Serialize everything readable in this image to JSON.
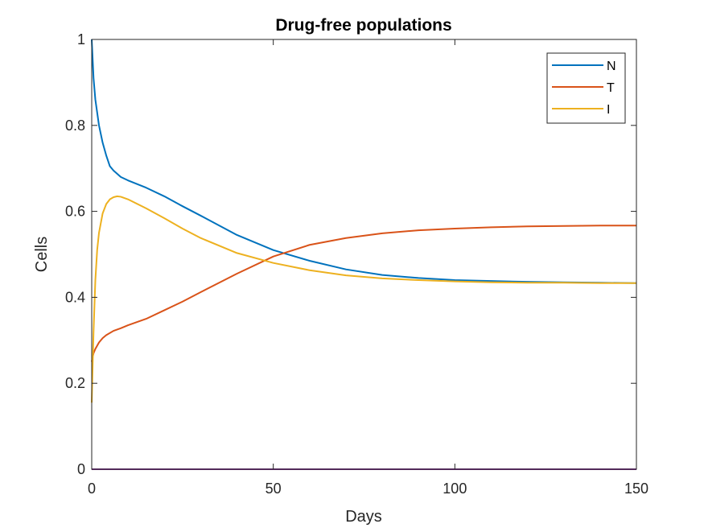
{
  "chart_data": {
    "type": "line",
    "title": "Drug-free populations",
    "xlabel": "Days",
    "ylabel": "Cells",
    "xlim": [
      0,
      150
    ],
    "ylim": [
      0,
      1
    ],
    "x_ticks": [
      0,
      50,
      100,
      150
    ],
    "y_ticks": [
      0,
      0.2,
      0.4,
      0.6,
      0.8,
      1
    ],
    "x_tick_labels": [
      "0",
      "50",
      "100",
      "150"
    ],
    "y_tick_labels": [
      "0",
      "0.2",
      "0.4",
      "0.6",
      "0.8",
      "1"
    ],
    "grid": false,
    "legend_position": "top-right",
    "series": [
      {
        "name": "N",
        "color": "#0072BD",
        "x": [
          0,
          0.5,
          1,
          2,
          3,
          4,
          5,
          6,
          8,
          10,
          15,
          20,
          25,
          30,
          40,
          50,
          60,
          70,
          80,
          90,
          100,
          110,
          120,
          130,
          140,
          150
        ],
        "y": [
          1.0,
          0.91,
          0.86,
          0.8,
          0.76,
          0.73,
          0.705,
          0.695,
          0.68,
          0.672,
          0.655,
          0.635,
          0.612,
          0.59,
          0.545,
          0.51,
          0.485,
          0.465,
          0.452,
          0.445,
          0.44,
          0.438,
          0.436,
          0.435,
          0.434,
          0.433
        ]
      },
      {
        "name": "T",
        "color": "#D95319",
        "x": [
          0,
          0.5,
          1,
          2,
          3,
          4,
          6,
          8,
          10,
          15,
          20,
          25,
          30,
          40,
          50,
          60,
          70,
          80,
          90,
          100,
          110,
          120,
          130,
          140,
          150
        ],
        "y": [
          0.25,
          0.27,
          0.28,
          0.295,
          0.305,
          0.312,
          0.322,
          0.328,
          0.335,
          0.35,
          0.37,
          0.39,
          0.412,
          0.455,
          0.495,
          0.522,
          0.538,
          0.549,
          0.556,
          0.56,
          0.563,
          0.565,
          0.566,
          0.567,
          0.567
        ]
      },
      {
        "name": "I",
        "color": "#EDB120",
        "x": [
          0,
          0.5,
          1,
          1.5,
          2,
          3,
          4,
          5,
          6,
          7,
          8,
          10,
          15,
          20,
          25,
          30,
          40,
          50,
          60,
          70,
          80,
          90,
          100,
          110,
          120,
          130,
          140,
          150
        ],
        "y": [
          0.155,
          0.32,
          0.44,
          0.51,
          0.55,
          0.595,
          0.617,
          0.628,
          0.633,
          0.635,
          0.634,
          0.628,
          0.607,
          0.584,
          0.56,
          0.538,
          0.503,
          0.48,
          0.463,
          0.451,
          0.444,
          0.44,
          0.437,
          0.435,
          0.434,
          0.434,
          0.433,
          0.433
        ]
      },
      {
        "name": "",
        "color": "#7E2F8E",
        "x": [
          0,
          150
        ],
        "y": [
          0,
          0
        ]
      }
    ]
  }
}
